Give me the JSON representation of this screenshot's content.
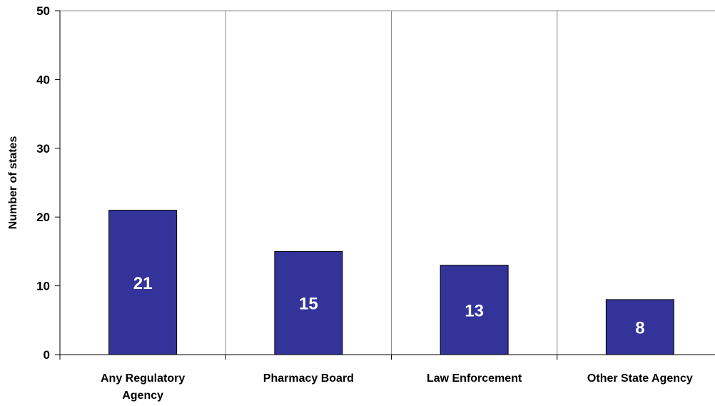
{
  "chart_data": {
    "type": "bar",
    "categories": [
      [
        "Any Regulatory",
        "Agency"
      ],
      [
        "Pharmacy Board"
      ],
      [
        "Law Enforcement"
      ],
      [
        "Other State Agency"
      ]
    ],
    "values": [
      21,
      15,
      13,
      8
    ],
    "data_labels": [
      "21",
      "15",
      "13",
      "8"
    ],
    "xlabel": "",
    "ylabel": "Number of states",
    "ylim": [
      0,
      50
    ],
    "yticks": [
      0,
      10,
      20,
      30,
      40,
      50
    ],
    "grid": "vertical category separators",
    "legend": "none",
    "bar_color": "#333399",
    "bar_edge_color": "#000000"
  }
}
